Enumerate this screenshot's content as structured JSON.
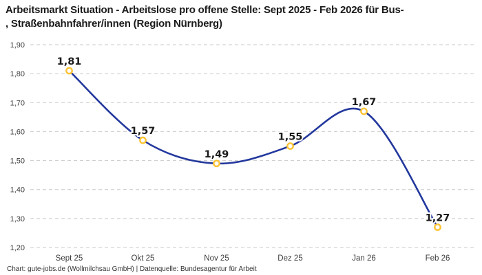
{
  "header": {
    "title": "Arbeitsmarkt Situation - Arbeitslose pro offene Stelle: Sept 2025 - Feb 2026 für Bus-\n, Straßenbahnfahrer/innen (Region Nürnberg)"
  },
  "footer": {
    "credit": "Chart: gute-jobs.de (Wollmilchsau GmbH) | Datenquelle: Bundesagentur für Arbeit"
  },
  "chart_data": {
    "type": "line",
    "title": "Arbeitsmarkt Situation - Arbeitslose pro offene Stelle: Sept 2025 - Feb 2026 für Bus-, Straßenbahnfahrer/innen (Region Nürnberg)",
    "categories": [
      "Sept 25",
      "Okt 25",
      "Nov 25",
      "Dez 25",
      "Jan 26",
      "Feb 26"
    ],
    "values": [
      1.81,
      1.57,
      1.49,
      1.55,
      1.67,
      1.27
    ],
    "value_labels": [
      "1,81",
      "1,57",
      "1,49",
      "1,55",
      "1,67",
      "1,27"
    ],
    "y_tick_labels": [
      "1,90",
      "1,80",
      "1,70",
      "1,60",
      "1,50",
      "1,40",
      "1,30",
      "1,20"
    ],
    "y_tick_values": [
      1.9,
      1.8,
      1.7,
      1.6,
      1.5,
      1.4,
      1.3,
      1.2
    ],
    "ylim": [
      1.2,
      1.9
    ],
    "ytick_step": 0.1,
    "grid": "dashed-horizontal",
    "legend": "none",
    "line_style": "smooth",
    "marker": "open-circle",
    "colors": {
      "line": "#23389d",
      "marker_ring": "#fcc434",
      "marker_fill": "#ffffff",
      "grid": "#c9c9c9",
      "value_label": "#1a1a1a",
      "axis_text": "#3c3c3c",
      "background": "#ffffff"
    }
  }
}
